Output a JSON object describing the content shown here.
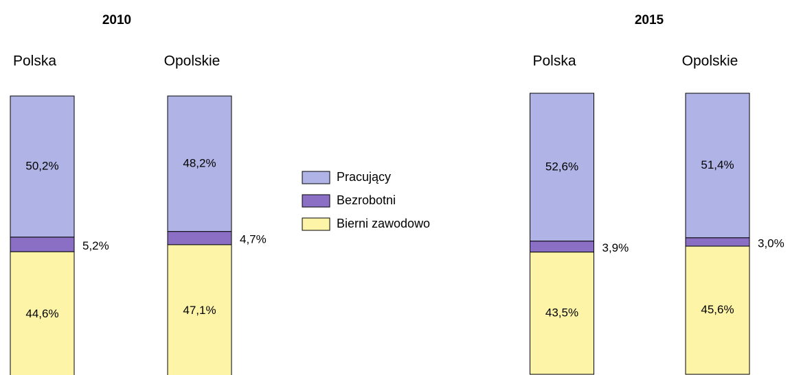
{
  "chart_data": [
    {
      "type": "bar",
      "title": "2010",
      "categories": [
        "Polska",
        "Opolskie"
      ],
      "ylim": [
        0,
        100
      ],
      "stacked": true,
      "series": [
        {
          "name": "Pracujący",
          "color": "#b0b3e6",
          "values": [
            50.2,
            48.2
          ],
          "value_labels": [
            "50,2%",
            "48,2%"
          ]
        },
        {
          "name": "Bezrobotni",
          "color": "#8a6fc4",
          "values": [
            5.2,
            4.7
          ],
          "value_labels": [
            "5,2%",
            "4,7%"
          ]
        },
        {
          "name": "Bierni zawodowo",
          "color": "#fdf4a8",
          "values": [
            44.6,
            47.1
          ],
          "value_labels": [
            "44,6%",
            "47,1%"
          ]
        }
      ]
    },
    {
      "type": "bar",
      "title": "2015",
      "categories": [
        "Polska",
        "Opolskie"
      ],
      "ylim": [
        0,
        100
      ],
      "stacked": true,
      "series": [
        {
          "color": "#b0b3e6",
          "values": [
            52.6,
            51.4
          ],
          "value_labels": [
            "52,6%",
            "51,4%"
          ]
        },
        {
          "color": "#8a6fc4",
          "values": [
            3.9,
            3.0
          ],
          "value_labels": [
            "3,9%",
            "3,0%"
          ]
        },
        {
          "color": "#fdf4a8",
          "values": [
            43.5,
            45.6
          ],
          "value_labels": [
            "43,5%",
            "45,6%"
          ]
        }
      ]
    }
  ]
}
